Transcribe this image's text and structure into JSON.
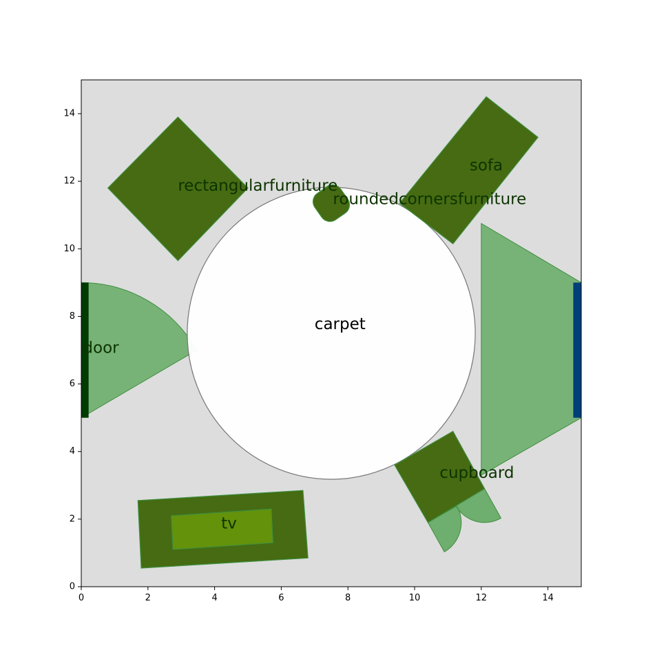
{
  "chart_data": {
    "type": "floor-plan",
    "xlim": [
      0,
      15
    ],
    "ylim": [
      0,
      15
    ],
    "x_ticks": [
      0,
      2,
      4,
      6,
      8,
      10,
      12,
      14
    ],
    "y_ticks": [
      0,
      2,
      4,
      6,
      8,
      10,
      12,
      14
    ],
    "grid": false,
    "room": {
      "color": "#dddddd"
    },
    "carpet": {
      "label": "carpet",
      "center": [
        7.5,
        7.5
      ],
      "radius": 4.32,
      "fill": "#ffffff",
      "stroke": "#777777"
    },
    "furniture": [
      {
        "id": "rectangularfurniture",
        "label": "rectangularfurniture",
        "polygon": [
          [
            2.9,
            13.9
          ],
          [
            5.0,
            11.8
          ],
          [
            2.9,
            9.65
          ],
          [
            0.8,
            11.8
          ]
        ],
        "label_at": [
          2.9,
          11.85
        ],
        "fill": "#466b12",
        "label_color": "#0d3300"
      },
      {
        "id": "sofa",
        "label": "sofa",
        "polygon": [
          [
            12.15,
            14.5
          ],
          [
            13.7,
            13.3
          ],
          [
            11.15,
            10.15
          ],
          [
            9.55,
            11.35
          ]
        ],
        "label_at": [
          11.65,
          12.45
        ],
        "fill": "#466b12",
        "label_color": "#0d3300"
      },
      {
        "id": "cupboard",
        "label": "cupboard",
        "polygon": [
          [
            9.4,
            3.6
          ],
          [
            11.15,
            4.6
          ],
          [
            12.1,
            2.9
          ],
          [
            10.4,
            1.9
          ]
        ],
        "label_at": [
          10.75,
          3.35
        ],
        "fill": "#466b12",
        "label_color": "#0d3300"
      },
      {
        "id": "tv",
        "label": "tv",
        "polygon": [
          [
            1.7,
            2.55
          ],
          [
            6.65,
            2.85
          ],
          [
            6.8,
            0.85
          ],
          [
            1.8,
            0.55
          ]
        ],
        "label_at": [
          4.2,
          1.85
        ],
        "fill": "#466b12",
        "label_color": "#0d3300"
      },
      {
        "id": "tv-screen",
        "polygon": [
          [
            2.7,
            2.1
          ],
          [
            5.7,
            2.3
          ],
          [
            5.75,
            1.3
          ],
          [
            2.75,
            1.1
          ]
        ],
        "fill": "#64920a"
      }
    ],
    "rounded_furniture": {
      "id": "roundedcornersfurniture",
      "label": "roundedcornersfurniture",
      "center": [
        7.5,
        11.35
      ],
      "size": [
        0.95,
        0.95
      ],
      "rotation_deg": 35,
      "corner_radius": 0.3,
      "label_at": [
        7.55,
        11.45
      ],
      "fill": "#466b12",
      "label_color": "#0d3300"
    },
    "openings": [
      {
        "id": "door",
        "label": "door",
        "side": "left",
        "y_range": [
          5,
          9
        ],
        "width": 0.22,
        "color": "#003b00",
        "label_at": [
          0.05,
          7.05
        ],
        "label_color": "#0d3300",
        "swing": {
          "hinge": [
            0,
            5
          ],
          "radius": 4.0,
          "start_deg": 90,
          "end_deg": 30
        }
      },
      {
        "id": "window",
        "side": "right",
        "y_range": [
          5,
          9
        ],
        "width": 0.24,
        "color": "#003f7a",
        "swing_polygon": [
          [
            15,
            9
          ],
          [
            12,
            10.75
          ],
          [
            12,
            3.3
          ],
          [
            15,
            5
          ]
        ]
      }
    ],
    "cupboard_doors": [
      {
        "hinge": [
          10.4,
          1.9
        ],
        "radius": 1.0,
        "start_deg": 29.5,
        "end_deg": -60.5
      },
      {
        "hinge": [
          12.1,
          2.9
        ],
        "radius": 1.0,
        "start_deg": 209.5,
        "end_deg": 299.5
      }
    ],
    "swing_color": "#5aa65a"
  }
}
